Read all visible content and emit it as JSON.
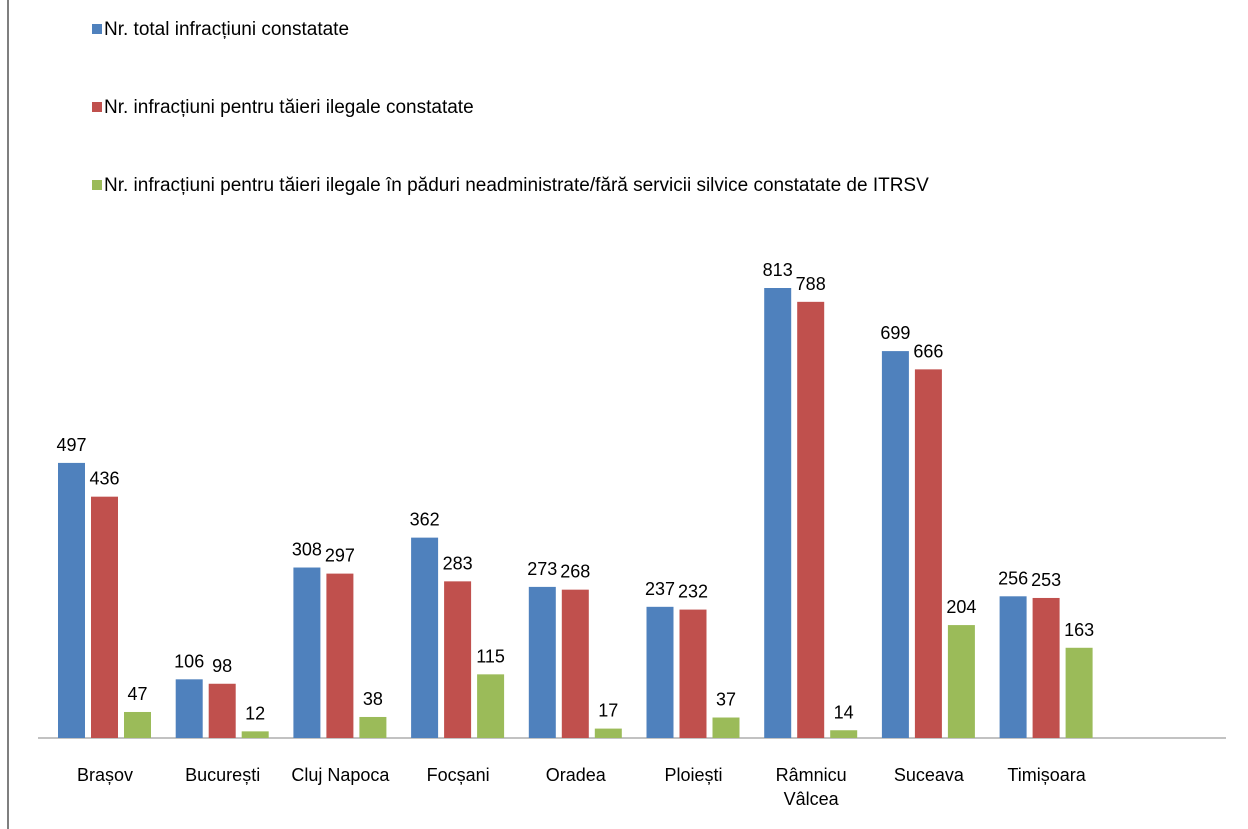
{
  "chart_data": {
    "type": "bar",
    "categories": [
      "Brașov",
      "București",
      "Cluj Napoca",
      "Focșani",
      "Oradea",
      "Ploiești",
      "Râmnicu Vâlcea",
      "Suceava",
      "Timișoara"
    ],
    "series": [
      {
        "name": "Nr. total infracțiuni constatate",
        "color": "#4f81bd",
        "values": [
          497,
          106,
          308,
          362,
          273,
          237,
          813,
          699,
          256
        ]
      },
      {
        "name": "Nr. infracțiuni pentru tăieri ilegale constatate",
        "color": "#c0504d",
        "values": [
          436,
          98,
          297,
          283,
          268,
          232,
          788,
          666,
          253
        ]
      },
      {
        "name": "Nr. infracțiuni pentru tăieri ilegale în păduri neadministrate/fără servicii silvice constatate de ITRSV",
        "color": "#9bbb59",
        "values": [
          47,
          12,
          38,
          115,
          17,
          37,
          14,
          204,
          163
        ]
      }
    ],
    "legend": "top-left"
  }
}
